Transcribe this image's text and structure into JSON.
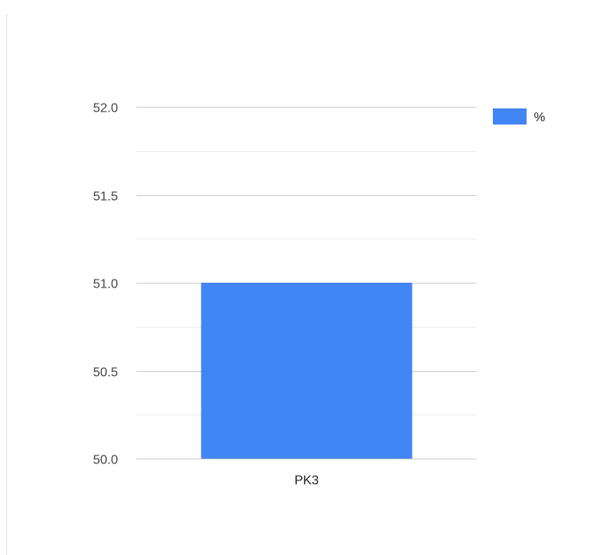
{
  "chart_data": {
    "type": "bar",
    "categories": [
      "PK3"
    ],
    "series": [
      {
        "name": "%",
        "values": [
          51.0
        ]
      }
    ],
    "title": "",
    "xlabel": "",
    "ylabel": "",
    "ylim": [
      50.0,
      52.0
    ],
    "yticks": [
      52.0,
      51.5,
      51.0,
      50.5,
      50.0
    ],
    "ytick_labels": [
      "52.0",
      "51.5",
      "51.0",
      "50.5",
      "50.0"
    ],
    "minor_gridlines": true,
    "grid": true,
    "legend_position": "right-top",
    "colors": {
      "series": "#4285f4",
      "major_grid": "#cccccc",
      "minor_grid": "#ebebeb"
    }
  }
}
